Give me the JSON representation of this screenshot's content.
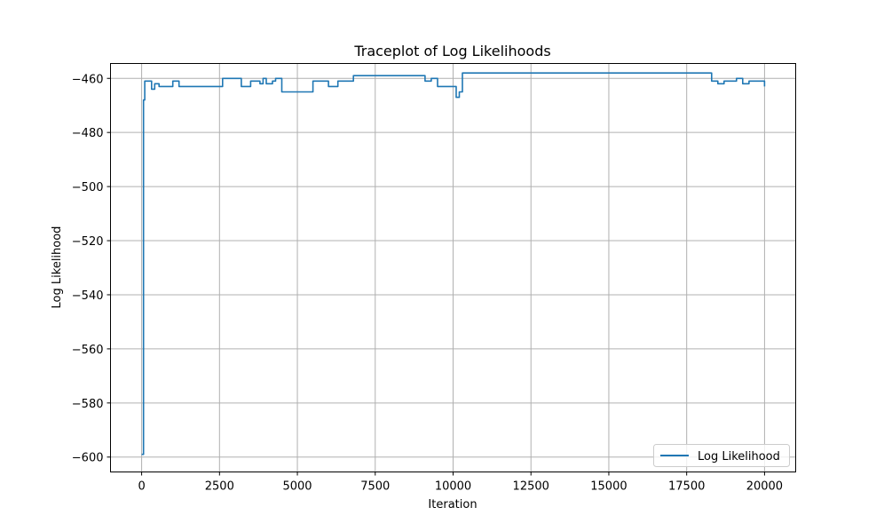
{
  "chart_data": {
    "type": "line",
    "title": "Traceplot of Log Likelihoods",
    "xlabel": "Iteration",
    "ylabel": "Log Likelihood",
    "xlim": [
      -1000,
      21000
    ],
    "ylim": [
      -605.5,
      -454.5
    ],
    "xticks": [
      0,
      2500,
      5000,
      7500,
      10000,
      12500,
      15000,
      17500,
      20000
    ],
    "yticks": [
      -600,
      -580,
      -560,
      -540,
      -520,
      -500,
      -480,
      -460
    ],
    "ytick_labels": [
      "−600",
      "−580",
      "−560",
      "−540",
      "−520",
      "−500",
      "−480",
      "−460"
    ],
    "grid": true,
    "legend_position": "lower-right",
    "series": [
      {
        "name": "Log Likelihood",
        "color": "#1f77b4",
        "step": true,
        "x": [
          0,
          30,
          60,
          100,
          130,
          320,
          420,
          560,
          1000,
          1200,
          1500,
          1800,
          2200,
          2600,
          3000,
          3200,
          3500,
          3800,
          3900,
          4000,
          4200,
          4300,
          4500,
          5000,
          5500,
          6000,
          6300,
          6600,
          6800,
          7000,
          8000,
          9000,
          9100,
          9300,
          9500,
          9800,
          10100,
          10200,
          10300,
          12000,
          14000,
          16000,
          18300,
          18500,
          18700,
          18900,
          19100,
          19300,
          19500,
          19700,
          20000
        ],
        "y": [
          -599,
          -599,
          -468,
          -461,
          -461,
          -464,
          -462,
          -463,
          -461,
          -463,
          -463,
          -463,
          -463,
          -460,
          -460,
          -463,
          -461,
          -462,
          -460,
          -462,
          -461,
          -460,
          -465,
          -465,
          -461,
          -463,
          -461,
          -461,
          -459,
          -459,
          -459,
          -459,
          -461,
          -460,
          -463,
          -463,
          -467,
          -465,
          -458,
          -458,
          -458,
          -458,
          -461,
          -462,
          -461,
          -461,
          -460,
          -462,
          -461,
          -461,
          -463
        ]
      }
    ]
  }
}
